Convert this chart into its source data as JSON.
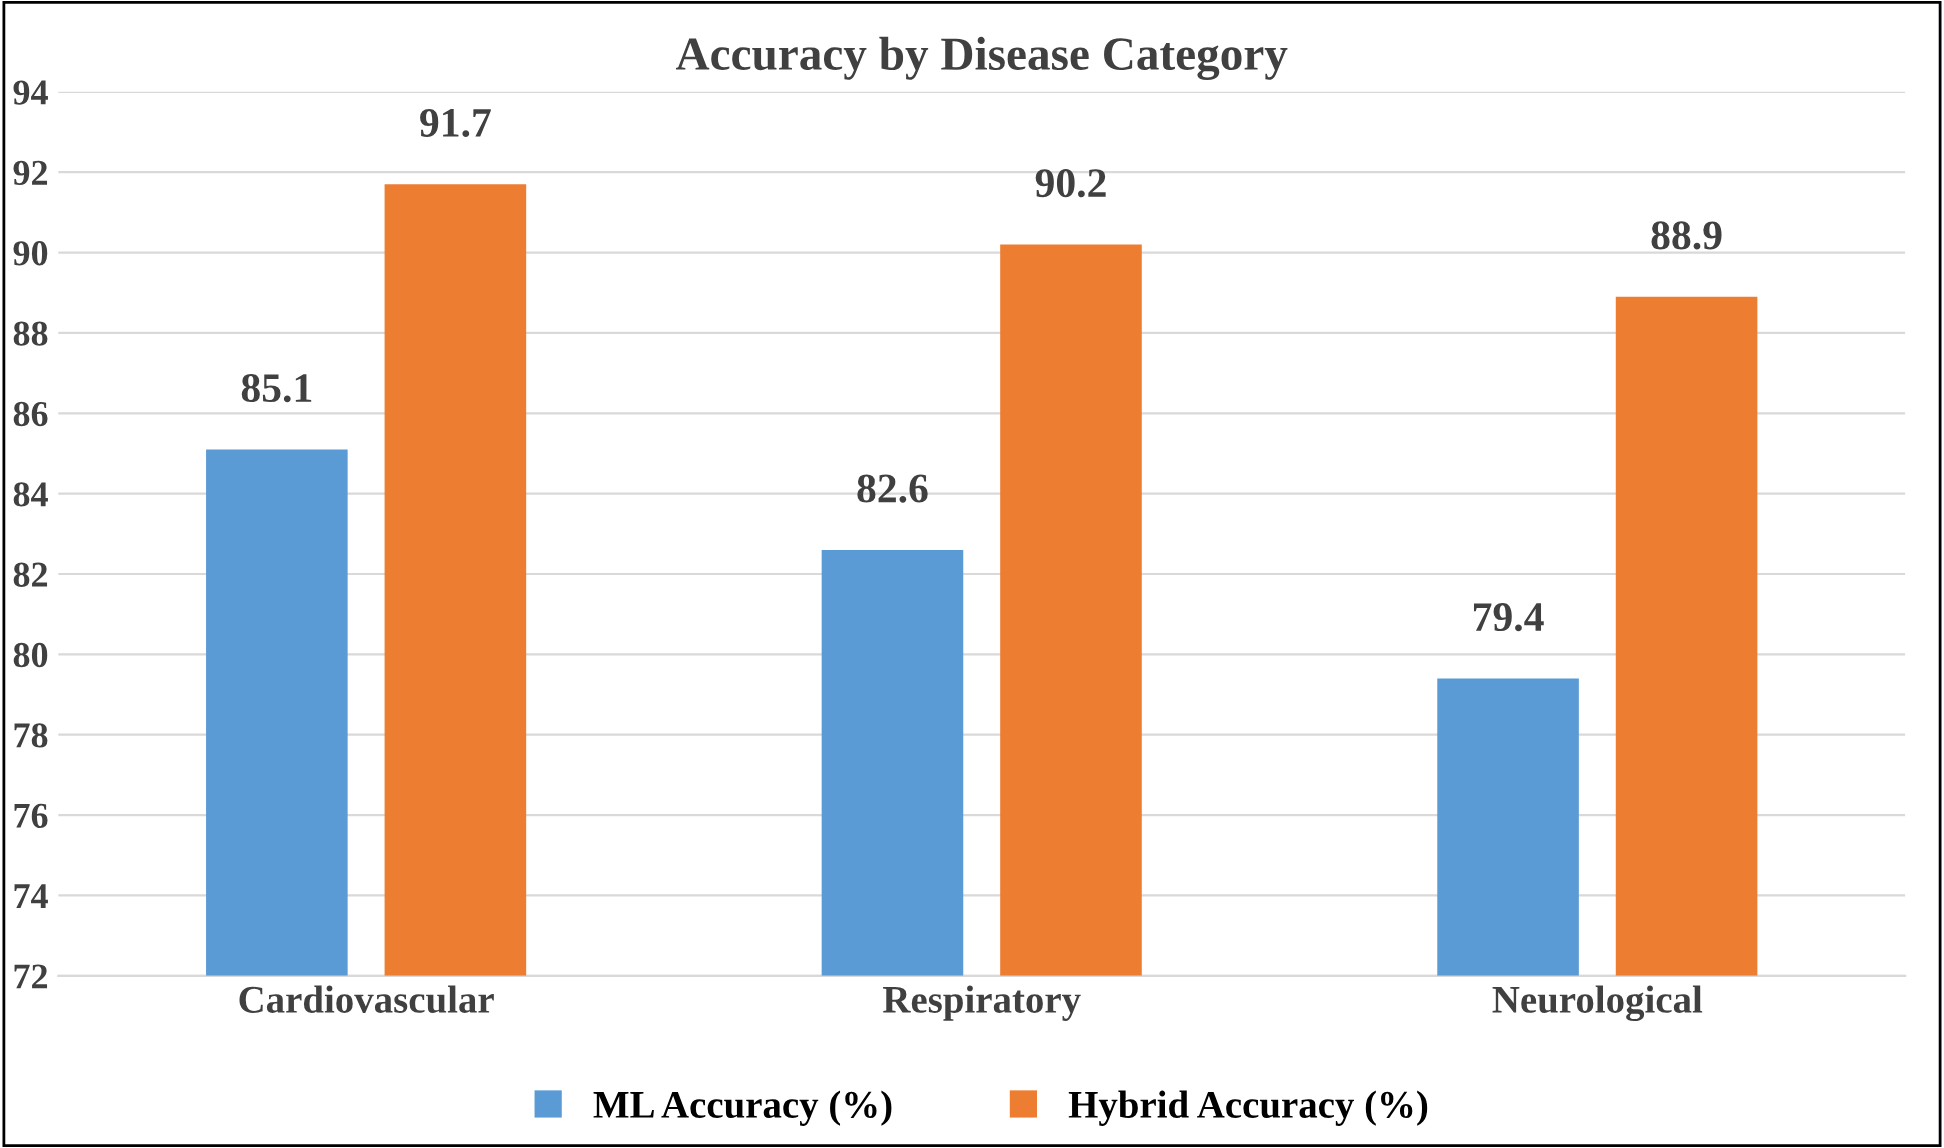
{
  "chart_data": {
    "type": "bar",
    "title": "Accuracy by Disease Category",
    "categories": [
      "Cardiovascular",
      "Respiratory",
      "Neurological"
    ],
    "series": [
      {
        "name": "ML Accuracy (%)",
        "color": "#5b9bd5",
        "values": [
          85.1,
          82.6,
          79.4
        ]
      },
      {
        "name": "Hybrid Accuracy (%)",
        "color": "#ed7d31",
        "values": [
          91.7,
          90.2,
          88.9
        ]
      }
    ],
    "ylim": [
      72,
      94
    ],
    "yticks": [
      72,
      74,
      76,
      78,
      80,
      82,
      84,
      86,
      88,
      90,
      92,
      94
    ],
    "grid": "y",
    "legend": "bottom",
    "data_labels": true
  }
}
